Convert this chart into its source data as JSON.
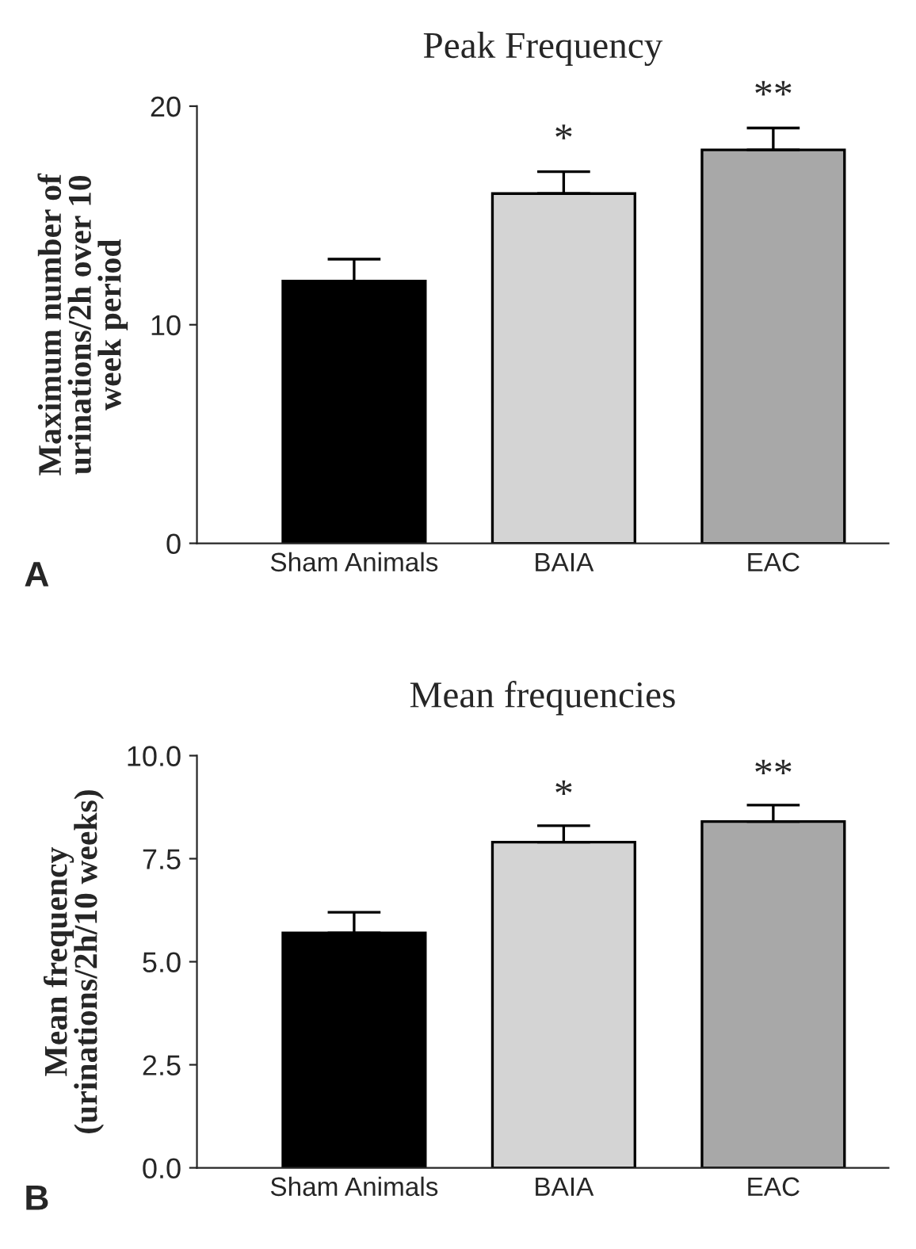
{
  "chart_data": [
    {
      "type": "bar",
      "title": "Peak Frequency",
      "ylabel": "Maximum number of\nurinations/2h over 10\nweek period",
      "categories": [
        "Sham Animals",
        "BAIA",
        "EAC"
      ],
      "values": [
        12,
        16,
        18
      ],
      "colors": [
        "#000000",
        "#d4d4d4",
        "#a8a8a8"
      ],
      "errors": [
        [
          12,
          13
        ],
        [
          16,
          17
        ],
        [
          18,
          19
        ]
      ],
      "ylim": [
        0,
        20
      ],
      "yticks": [
        0,
        10,
        20
      ],
      "grid": false,
      "legend": false,
      "annotations": [
        "A",
        "*",
        "**"
      ]
    },
    {
      "type": "bar",
      "title": "Mean frequencies",
      "ylabel": "Mean frequency\n(urinations/2h/10 weeks)",
      "categories": [
        "Sham Animals",
        "BAIA",
        "EAC"
      ],
      "values": [
        5.7,
        7.9,
        8.4
      ],
      "colors": [
        "#000000",
        "#d4d4d4",
        "#a8a8a8"
      ],
      "errors": [
        [
          5.7,
          6.2
        ],
        [
          7.9,
          8.3
        ],
        [
          8.4,
          8.8
        ]
      ],
      "ylim": [
        0,
        10
      ],
      "yticks": [
        {
          "value": 0,
          "label": "0.0"
        },
        {
          "value": 2.5,
          "label": "2.5"
        },
        {
          "value": 5,
          "label": "5.0"
        },
        {
          "value": 7.5,
          "label": "7.5"
        },
        {
          "value": 10,
          "label": "10.0"
        }
      ],
      "grid": false,
      "legend": false,
      "annotations": [
        "B",
        "*",
        "**"
      ]
    }
  ]
}
